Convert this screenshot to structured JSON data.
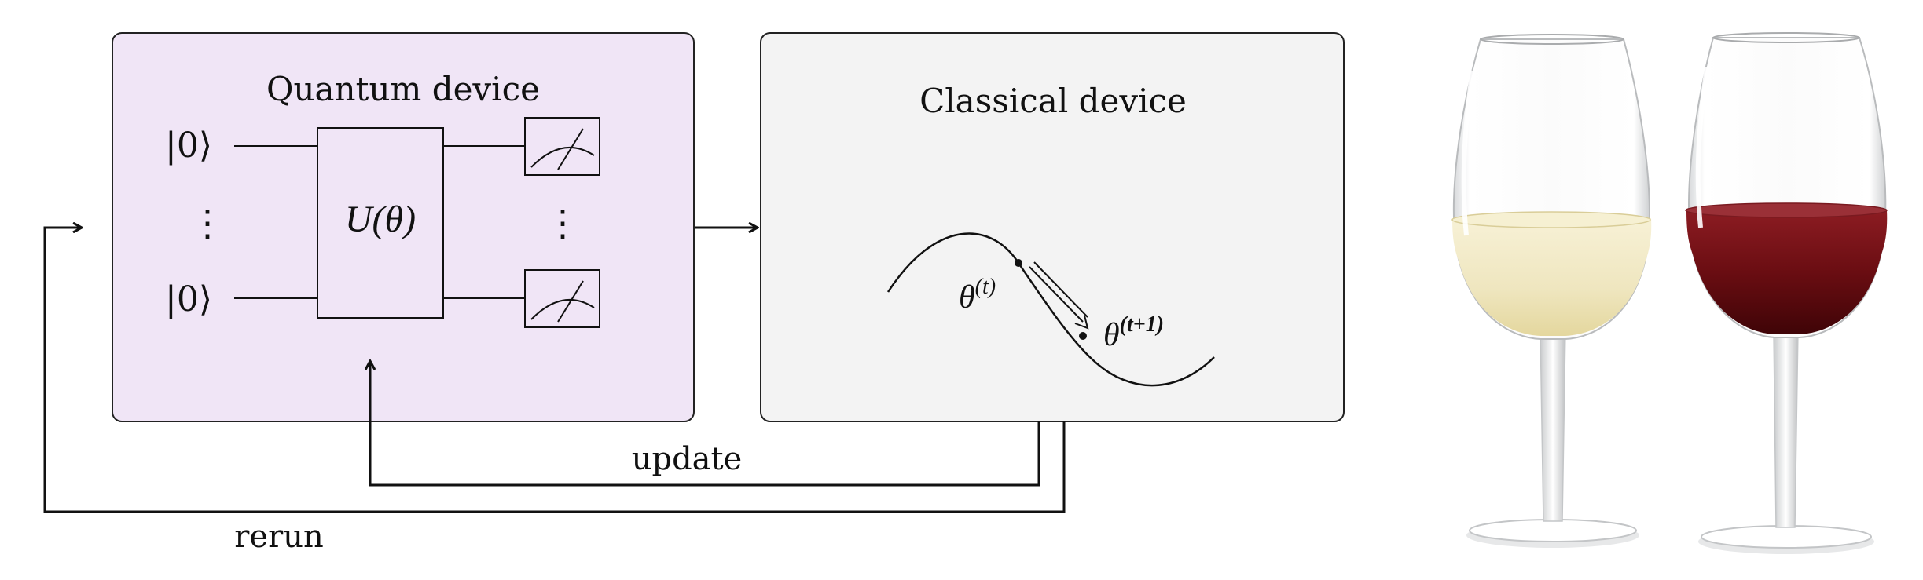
{
  "diagram": {
    "quantum_device": {
      "title": "Quantum device",
      "fill": "#f0e5f6",
      "input_top": "|0⟩",
      "input_bottom": "|0⟩",
      "gate_label": "U(θ)",
      "dots": "⋮"
    },
    "classical_device": {
      "title": "Classical device",
      "fill": "#f3f3f3",
      "theta_t": "θ",
      "theta_t_sup": "(t)",
      "theta_t1": "θ",
      "theta_t1_sup": "(t+1)"
    },
    "loops": {
      "update_label": "update",
      "rerun_label": "rerun"
    }
  },
  "image": {
    "subject": "two wine glasses",
    "white_wine_color": "#efe6bf",
    "red_wine_color": "#6a0d12"
  }
}
